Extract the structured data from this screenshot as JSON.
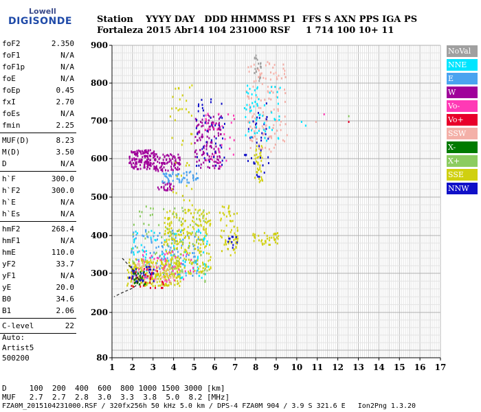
{
  "logo": {
    "top": "Lowell",
    "main": "DIGISONDE"
  },
  "header": {
    "line1": "Station    YYYY DAY   DDD HHMMSS P1  FFS S AXN PPS IGA PS",
    "line2": "Fortaleza 2015 Abr14 104 231000 RSF     1 714 100 10+ 11"
  },
  "params": {
    "group1": [
      {
        "label": "foF2",
        "value": "2.350"
      },
      {
        "label": "foF1",
        "value": "N/A"
      },
      {
        "label": "foF1p",
        "value": "N/A"
      },
      {
        "label": "foE",
        "value": "N/A"
      },
      {
        "label": "foEp",
        "value": "0.45"
      },
      {
        "label": "fxI",
        "value": "2.70"
      },
      {
        "label": "foEs",
        "value": "N/A"
      },
      {
        "label": "fmin",
        "value": "2.25"
      }
    ],
    "group2": [
      {
        "label": "MUF(D)",
        "value": "8.23"
      },
      {
        "label": "M(D)",
        "value": "3.50"
      },
      {
        "label": "D",
        "value": "N/A"
      }
    ],
    "group3": [
      {
        "label": "h`F",
        "value": "300.0"
      },
      {
        "label": "h`F2",
        "value": "300.0"
      },
      {
        "label": "h`E",
        "value": "N/A"
      },
      {
        "label": "h`Es",
        "value": "N/A"
      }
    ],
    "group4": [
      {
        "label": "hmF2",
        "value": "268.4"
      },
      {
        "label": "hmF1",
        "value": "N/A"
      },
      {
        "label": "hmE",
        "value": "110.0"
      },
      {
        "label": "yF2",
        "value": "33.7"
      },
      {
        "label": "yF1",
        "value": "N/A"
      },
      {
        "label": "yE",
        "value": "20.0"
      },
      {
        "label": "B0",
        "value": "34.6"
      },
      {
        "label": "B1",
        "value": "2.06"
      }
    ],
    "group5": [
      {
        "label": "C-level",
        "value": "22"
      }
    ]
  },
  "auto": {
    "line1": "Auto:",
    "line2": "Artist5",
    "line3": "500200"
  },
  "legend": [
    {
      "label": "NoVal",
      "color": "#a0a0a0"
    },
    {
      "label": "NNE",
      "color": "#00e5ff"
    },
    {
      "label": "E",
      "color": "#4aa3f0"
    },
    {
      "label": "W",
      "color": "#a0009a"
    },
    {
      "label": "Vo-",
      "color": "#ff3ab5"
    },
    {
      "label": "Vo+",
      "color": "#e8002a"
    },
    {
      "label": "SSW",
      "color": "#f4b0a8"
    },
    {
      "label": "X-",
      "color": "#007a00"
    },
    {
      "label": "X+",
      "color": "#8ccc60"
    },
    {
      "label": "SSE",
      "color": "#d0d010"
    },
    {
      "label": "NNW",
      "color": "#1010c8"
    }
  ],
  "footer": {
    "line1": "D     100  200  400  600  800 1000 1500 3000 [km]",
    "line2": "MUF   2.7  2.7  2.8  3.0  3.3  3.8  5.0  8.2 [MHz]",
    "line3": "FZA0M_2015104231000.RSF / 320fx256h 50 kHz 5.0 km / DPS-4 FZA0M 904 / 3.9 S 321.6 E   Ion2Png 1.3.20"
  },
  "chart_data": {
    "type": "scatter",
    "xlim": [
      1,
      17
    ],
    "ylim": [
      80,
      900
    ],
    "x_ticks": [
      "1",
      "2",
      "3",
      "4",
      "5",
      "6",
      "7",
      "8",
      "9",
      "10",
      "11",
      "12",
      "13",
      "14",
      "15",
      "16",
      "17"
    ],
    "y_ticks": [
      "80",
      "200",
      "300",
      "400",
      "500",
      "600",
      "700",
      "800",
      "900"
    ],
    "grid": true,
    "clusters": [
      {
        "color": "#a0009a",
        "x": [
          1.8,
          3.1
        ],
        "y": [
          575,
          625
        ],
        "n": 140
      },
      {
        "color": "#a0009a",
        "x": [
          3.0,
          4.3
        ],
        "y": [
          570,
          615
        ],
        "n": 90
      },
      {
        "color": "#a0009a",
        "x": [
          3.2,
          4.0
        ],
        "y": [
          520,
          540
        ],
        "n": 25
      },
      {
        "color": "#a0009a",
        "x": [
          5.0,
          6.3
        ],
        "y": [
          575,
          720
        ],
        "n": 130
      },
      {
        "color": "#4aa3f0",
        "x": [
          3.4,
          5.2
        ],
        "y": [
          540,
          570
        ],
        "n": 55
      },
      {
        "color": "#4aa3f0",
        "x": [
          1.9,
          5.3
        ],
        "y": [
          290,
          420
        ],
        "n": 120
      },
      {
        "color": "#00e5ff",
        "x": [
          1.9,
          5.8
        ],
        "y": [
          290,
          420
        ],
        "n": 90
      },
      {
        "color": "#d0d010",
        "x": [
          1.7,
          4.3
        ],
        "y": [
          270,
          340
        ],
        "n": 260
      },
      {
        "color": "#d0d010",
        "x": [
          3.5,
          5.8
        ],
        "y": [
          300,
          470
        ],
        "n": 240
      },
      {
        "color": "#d0d010",
        "x": [
          3.8,
          4.9
        ],
        "y": [
          480,
          800
        ],
        "n": 40
      },
      {
        "color": "#d0d010",
        "x": [
          6.2,
          7.1
        ],
        "y": [
          350,
          480
        ],
        "n": 60
      },
      {
        "color": "#d0d010",
        "x": [
          7.8,
          9.1
        ],
        "y": [
          375,
          410
        ],
        "n": 40
      },
      {
        "color": "#d0d010",
        "x": [
          7.9,
          8.3
        ],
        "y": [
          540,
          640
        ],
        "n": 40
      },
      {
        "color": "#8ccc60",
        "x": [
          1.9,
          5.6
        ],
        "y": [
          280,
          480
        ],
        "n": 70
      },
      {
        "color": "#e8002a",
        "x": [
          1.9,
          3.5
        ],
        "y": [
          265,
          320
        ],
        "n": 40
      },
      {
        "color": "#ff3ab5",
        "x": [
          2.0,
          5.0
        ],
        "y": [
          280,
          360
        ],
        "n": 50
      },
      {
        "color": "#ff3ab5",
        "x": [
          5.5,
          7.0
        ],
        "y": [
          580,
          730
        ],
        "n": 35
      },
      {
        "color": "#f4b0a8",
        "x": [
          1.9,
          4.0
        ],
        "y": [
          280,
          330
        ],
        "n": 50
      },
      {
        "color": "#f4b0a8",
        "x": [
          7.5,
          9.5
        ],
        "y": [
          620,
          860
        ],
        "n": 130
      },
      {
        "color": "#1010c8",
        "x": [
          1.8,
          3.0
        ],
        "y": [
          280,
          320
        ],
        "n": 30
      },
      {
        "color": "#1010c8",
        "x": [
          5.0,
          6.5
        ],
        "y": [
          575,
          760
        ],
        "n": 45
      },
      {
        "color": "#1010c8",
        "x": [
          7.4,
          8.6
        ],
        "y": [
          550,
          750
        ],
        "n": 40
      },
      {
        "color": "#1010c8",
        "x": [
          6.6,
          7.1
        ],
        "y": [
          360,
          400
        ],
        "n": 10
      },
      {
        "color": "#00e5ff",
        "x": [
          7.4,
          9.2
        ],
        "y": [
          650,
          800
        ],
        "n": 60
      },
      {
        "color": "#a0a0a0",
        "x": [
          7.9,
          8.3
        ],
        "y": [
          800,
          880
        ],
        "n": 20
      },
      {
        "color": "#007a00",
        "x": [
          2.0,
          2.6
        ],
        "y": [
          270,
          310
        ],
        "n": 20
      }
    ],
    "isolated_points": [
      {
        "x": 10.2,
        "y": 700,
        "color": "#00e5ff"
      },
      {
        "x": 10.4,
        "y": 690,
        "color": "#00e5ff"
      },
      {
        "x": 10.9,
        "y": 700,
        "color": "#f4b0a8"
      },
      {
        "x": 11.3,
        "y": 720,
        "color": "#ff3ab5"
      },
      {
        "x": 12.5,
        "y": 700,
        "color": "#e8002a"
      },
      {
        "x": 12.5,
        "y": 715,
        "color": "#8ccc60"
      }
    ],
    "profile_curve": {
      "x": [
        1.5,
        1.8,
        2.05,
        2.3,
        2.2,
        2.0,
        1.7,
        1.4,
        1.1
      ],
      "y": [
        340,
        322,
        308,
        285,
        270,
        262,
        255,
        248,
        240
      ]
    }
  }
}
